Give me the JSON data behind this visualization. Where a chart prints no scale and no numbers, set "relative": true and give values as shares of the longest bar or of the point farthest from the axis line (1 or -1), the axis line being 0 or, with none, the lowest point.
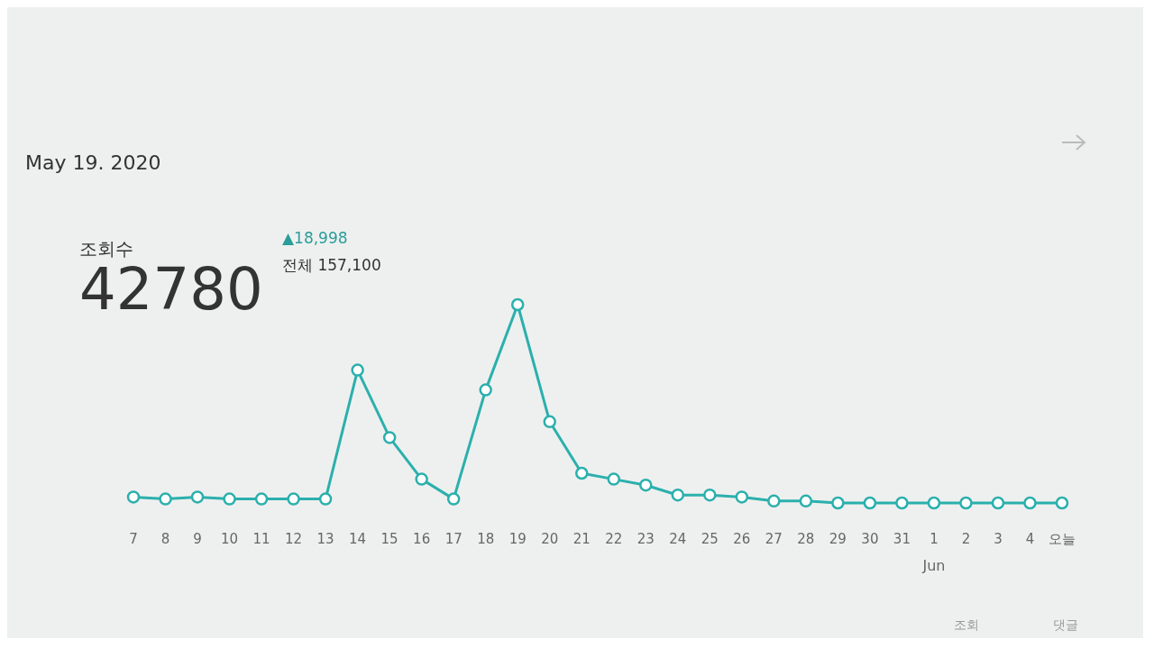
{
  "chart_data": {
    "type": "line",
    "title": "May 19. 2020",
    "categories": [
      "7",
      "8",
      "9",
      "10",
      "11",
      "12",
      "13",
      "14",
      "15",
      "16",
      "17",
      "18",
      "19",
      "20",
      "21",
      "22",
      "23",
      "24",
      "25",
      "26",
      "27",
      "28",
      "29",
      "30",
      "31",
      "1",
      "2",
      "3",
      "4",
      "오늘"
    ],
    "series": [
      {
        "color": "#2bb0ad",
        "values": [
          0.03,
          0.02,
          0.03,
          0.02,
          0.02,
          0.02,
          0.02,
          0.67,
          0.33,
          0.12,
          0.02,
          0.57,
          1.0,
          0.41,
          0.15,
          0.12,
          0.09,
          0.04,
          0.04,
          0.03,
          0.01,
          0.01,
          0,
          0,
          0,
          0,
          0,
          0,
          0,
          0
        ]
      }
    ],
    "relative": true,
    "marker": "circle",
    "annotations": [
      "조회수",
      "42780",
      "▲18,998",
      "전체 157,100",
      "Jun",
      "조회",
      "댓글"
    ]
  }
}
